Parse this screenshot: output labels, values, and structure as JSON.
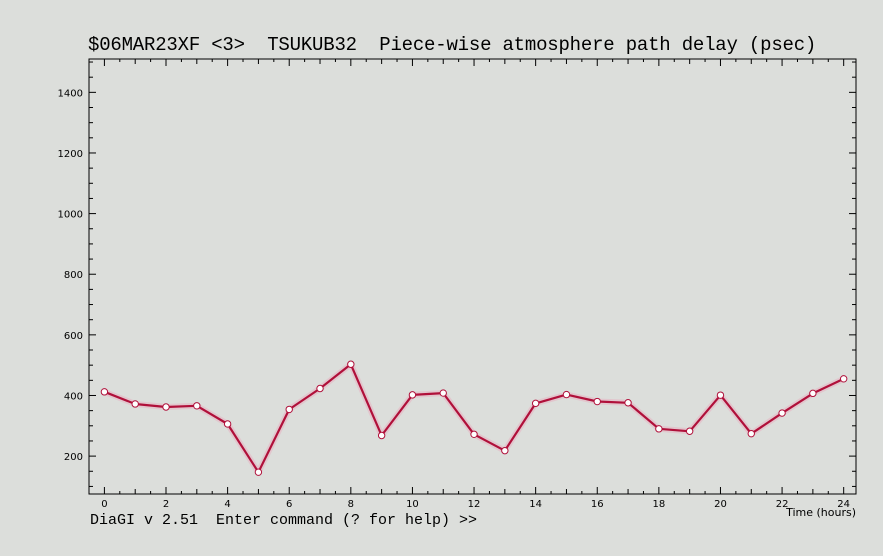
{
  "title": "$06MAR23XF <3>  TSUKUB32  Piece-wise atmosphere path delay (psec)",
  "status": {
    "prompt": "DiaGI v 2.51  Enter command (? for help) >>"
  },
  "chart_data": {
    "type": "line",
    "title": "$06MAR23XF <3>  TSUKUB32  Piece-wise atmosphere path delay (psec)",
    "xlabel": "Time (hours)",
    "ylabel": "",
    "xlim": [
      -0.5,
      24.4
    ],
    "ylim": [
      75,
      1510
    ],
    "xticks": [
      0,
      2,
      4,
      6,
      8,
      10,
      12,
      14,
      16,
      18,
      20,
      22,
      24
    ],
    "yticks": [
      200,
      400,
      600,
      800,
      1000,
      1200,
      1400
    ],
    "grid": false,
    "series": [
      {
        "x": [
          0,
          1,
          2,
          3,
          4,
          5,
          6,
          7,
          8,
          9,
          10,
          11,
          12,
          13,
          14,
          15,
          16,
          17,
          18,
          19,
          20,
          21,
          22,
          23,
          24
        ],
        "values": [
          412,
          372,
          362,
          366,
          306,
          147,
          354,
          423,
          503,
          268,
          402,
          408,
          272,
          218,
          374,
          403,
          380,
          376,
          290,
          282,
          401,
          274,
          342,
          407,
          455
        ]
      }
    ],
    "colors": {
      "line": "#b0103a",
      "marker_fill": "#ffffff",
      "marker_edge": "#b0103a",
      "frame": "#000000",
      "background": "#dcdedb"
    }
  }
}
